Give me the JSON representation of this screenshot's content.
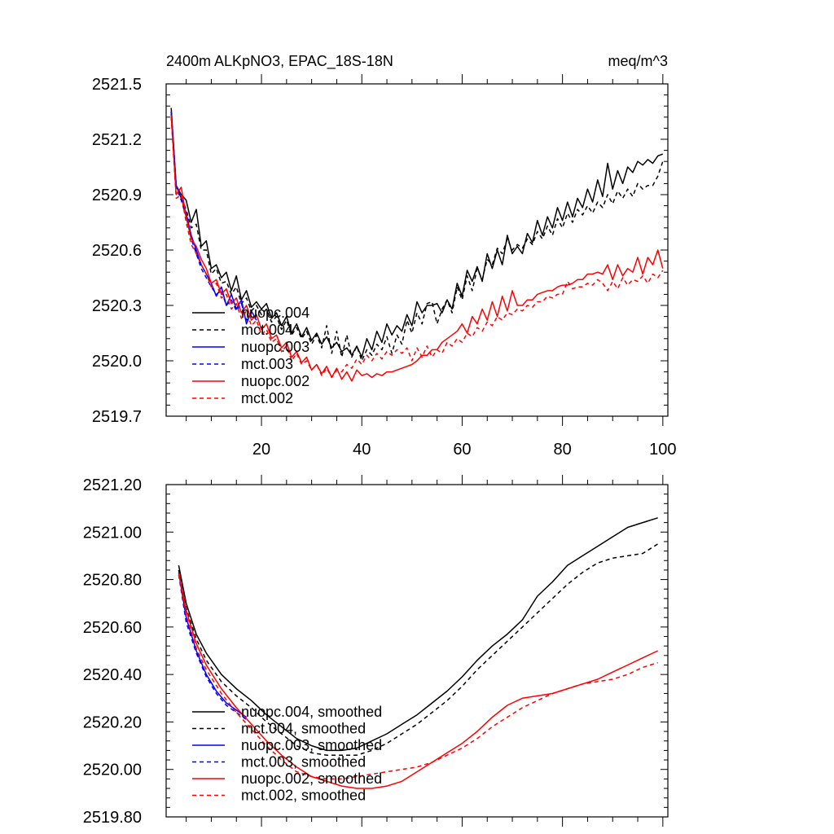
{
  "chart_data": [
    {
      "type": "line",
      "title": "2400m ALKpNO3, EPAC_18S-18N",
      "units": "meq/m^3",
      "xlabel": "",
      "ylabel": "",
      "xlim": [
        1,
        101
      ],
      "ylim": [
        2519.7,
        2521.5
      ],
      "xticks": [
        20,
        40,
        60,
        80,
        100
      ],
      "yticks": [
        2519.7,
        2520.0,
        2520.3,
        2520.6,
        2520.9,
        2521.2,
        2521.5
      ],
      "ytick_labels": [
        "2519.7",
        "2520.0",
        "2520.3",
        "2520.6",
        "2520.9",
        "2521.2",
        "2521.5"
      ],
      "series": [
        {
          "name": "nuopc.004",
          "color": "#000000",
          "dash": "solid",
          "x_start": 2,
          "values": [
            2521.37,
            2520.95,
            2520.9,
            2520.87,
            2520.75,
            2520.82,
            2520.62,
            2520.65,
            2520.5,
            2520.52,
            2520.45,
            2520.48,
            2520.38,
            2520.46,
            2520.33,
            2520.38,
            2520.29,
            2520.32,
            2520.28,
            2520.31,
            2520.23,
            2520.26,
            2520.19,
            2520.24,
            2520.15,
            2520.2,
            2520.13,
            2520.18,
            2520.11,
            2520.15,
            2520.09,
            2520.13,
            2520.07,
            2520.1,
            2520.05,
            2520.07,
            2520.03,
            2520.08,
            2520.02,
            2520.12,
            2520.06,
            2520.16,
            2520.1,
            2520.2,
            2520.14,
            2520.19,
            2520.16,
            2520.25,
            2520.19,
            2520.32,
            2520.26,
            2520.3,
            2520.3,
            2520.31,
            2520.26,
            2520.33,
            2520.28,
            2520.42,
            2520.35,
            2520.49,
            2520.43,
            2520.51,
            2520.43,
            2520.58,
            2520.5,
            2520.6,
            2520.52,
            2520.68,
            2520.58,
            2520.62,
            2520.58,
            2520.69,
            2520.64,
            2520.76,
            2520.68,
            2520.78,
            2520.72,
            2520.83,
            2520.76,
            2520.86,
            2520.78,
            2520.88,
            2520.83,
            2520.93,
            2520.86,
            2520.98,
            2520.89,
            2521.07,
            2520.93,
            2521.03,
            2520.96,
            2521.05,
            2521.02,
            2521.08,
            2521.06,
            2521.09,
            2521.07,
            2521.11,
            2521.12
          ]
        },
        {
          "name": "mct.004",
          "color": "#000000",
          "dash": "dashed",
          "x_start": 2,
          "values": [
            2521.35,
            2520.93,
            2520.88,
            2520.82,
            2520.72,
            2520.74,
            2520.6,
            2520.6,
            2520.47,
            2520.5,
            2520.42,
            2520.43,
            2520.36,
            2520.4,
            2520.31,
            2520.34,
            2520.27,
            2520.3,
            2520.25,
            2520.28,
            2520.21,
            2520.24,
            2520.17,
            2520.22,
            2520.14,
            2520.18,
            2520.12,
            2520.16,
            2520.09,
            2520.14,
            2520.07,
            2520.19,
            2520.04,
            2520.16,
            2520.02,
            2520.14,
            2520.02,
            2520.08,
            2520.0,
            2520.06,
            2520.03,
            2520.09,
            2520.06,
            2520.13,
            2520.04,
            2520.14,
            2520.09,
            2520.22,
            2520.15,
            2520.26,
            2520.2,
            2520.31,
            2520.32,
            2520.2,
            2520.28,
            2520.33,
            2520.26,
            2520.4,
            2520.33,
            2520.46,
            2520.38,
            2520.5,
            2520.44,
            2520.55,
            2520.52,
            2520.61,
            2520.58,
            2520.66,
            2520.6,
            2520.63,
            2520.61,
            2520.66,
            2520.63,
            2520.7,
            2520.66,
            2520.73,
            2520.68,
            2520.77,
            2520.72,
            2520.8,
            2520.75,
            2520.82,
            2520.79,
            2520.84,
            2520.8,
            2520.86,
            2520.83,
            2520.9,
            2520.85,
            2520.92,
            2520.88,
            2520.93,
            2520.89,
            2520.96,
            2520.93,
            2520.95,
            2520.95,
            2521.0,
            2521.08
          ]
        },
        {
          "name": "nuopc.003",
          "color": "#0000ff",
          "dash": "solid",
          "x_start": 2,
          "values": [
            2521.35,
            2520.95,
            2520.88,
            2520.8,
            2520.68,
            2520.6,
            2520.52,
            2520.47,
            2520.42,
            2520.35,
            2520.4,
            2520.3,
            2520.36,
            2520.28,
            2520.33,
            2520.2,
            2520.27,
            2520.22
          ]
        },
        {
          "name": "mct.003",
          "color": "#0000ff",
          "dash": "dashed",
          "x_start": 2,
          "values": [
            2521.35,
            2520.94,
            2520.87,
            2520.78,
            2520.66,
            2520.58,
            2520.5,
            2520.45,
            2520.4,
            2520.36,
            2520.38,
            2520.3,
            2520.33,
            2520.27,
            2520.31,
            2520.22,
            2520.26,
            2520.22
          ]
        },
        {
          "name": "nuopc.002",
          "color": "#ff0000",
          "dash": "solid",
          "x_start": 2,
          "values": [
            2521.33,
            2520.9,
            2520.94,
            2520.78,
            2520.66,
            2520.62,
            2520.55,
            2520.5,
            2520.42,
            2520.44,
            2520.36,
            2520.39,
            2520.31,
            2520.34,
            2520.26,
            2520.3,
            2520.22,
            2520.25,
            2520.17,
            2520.2,
            2520.12,
            2520.14,
            2520.07,
            2520.1,
            2520.02,
            2520.05,
            2519.99,
            2520.02,
            2519.95,
            2519.98,
            2519.93,
            2519.97,
            2519.91,
            2519.96,
            2519.9,
            2519.94,
            2519.89,
            2519.95,
            2519.92,
            2519.93,
            2519.91,
            2519.93,
            2519.92,
            2519.94,
            2519.94,
            2519.95,
            2519.96,
            2519.97,
            2519.98,
            2520.0,
            2520.03,
            2520.03,
            2520.06,
            2520.06,
            2520.1,
            2520.12,
            2520.14,
            2520.16,
            2520.2,
            2520.15,
            2520.24,
            2520.2,
            2520.28,
            2520.22,
            2520.32,
            2520.24,
            2520.35,
            2520.27,
            2520.38,
            2520.3,
            2520.3,
            2520.33,
            2520.33,
            2520.36,
            2520.37,
            2520.38,
            2520.38,
            2520.4,
            2520.41,
            2520.41,
            2520.42,
            2520.44,
            2520.44,
            2520.47,
            2520.47,
            2520.48,
            2520.47,
            2520.52,
            2520.44,
            2520.52,
            2520.46,
            2520.5,
            2520.48,
            2520.56,
            2520.47,
            2520.56,
            2520.52,
            2520.6,
            2520.5
          ]
        },
        {
          "name": "mct.002",
          "color": "#ff0000",
          "dash": "dashed",
          "x_start": 2,
          "values": [
            2521.32,
            2520.88,
            2520.9,
            2520.75,
            2520.63,
            2520.58,
            2520.52,
            2520.47,
            2520.4,
            2520.42,
            2520.34,
            2520.36,
            2520.28,
            2520.31,
            2520.23,
            2520.27,
            2520.19,
            2520.22,
            2520.14,
            2520.17,
            2520.1,
            2520.12,
            2520.05,
            2520.08,
            2520.0,
            2520.04,
            2519.98,
            2520.0,
            2519.95,
            2519.98,
            2519.92,
            2519.96,
            2519.91,
            2519.95,
            2519.94,
            2519.98,
            2519.96,
            2520.01,
            2519.98,
            2520.03,
            2520.0,
            2520.04,
            2520.01,
            2520.05,
            2520.03,
            2520.06,
            2520.04,
            2520.07,
            2520.0,
            2520.07,
            2520.02,
            2520.08,
            2520.02,
            2520.06,
            2520.04,
            2520.1,
            2520.08,
            2520.12,
            2520.1,
            2520.15,
            2520.13,
            2520.18,
            2520.16,
            2520.21,
            2520.19,
            2520.24,
            2520.22,
            2520.26,
            2520.25,
            2520.28,
            2520.27,
            2520.3,
            2520.29,
            2520.32,
            2520.32,
            2520.35,
            2520.34,
            2520.36,
            2520.36,
            2520.43,
            2520.39,
            2520.4,
            2520.4,
            2520.42,
            2520.41,
            2520.44,
            2520.42,
            2520.38,
            2520.43,
            2520.39,
            2520.45,
            2520.41,
            2520.44,
            2520.43,
            2520.46,
            2520.42,
            2520.47,
            2520.45,
            2520.49
          ]
        }
      ]
    },
    {
      "type": "line",
      "title": "",
      "xlabel": "",
      "ylabel": "",
      "xlim": [
        1,
        101
      ],
      "ylim": [
        2519.8,
        2521.2
      ],
      "xticks": [
        20,
        40,
        60,
        80,
        100
      ],
      "yticks": [
        2519.8,
        2520.0,
        2520.2,
        2520.4,
        2520.6,
        2520.8,
        2521.0,
        2521.2
      ],
      "ytick_labels": [
        "2519.80",
        "2520.00",
        "2520.20",
        "2520.40",
        "2520.60",
        "2520.80",
        "2521.00",
        "2521.20"
      ],
      "series": [
        {
          "name": "nuopc.004, smoothed",
          "color": "#000000",
          "dash": "solid",
          "x": [
            3.5,
            5,
            7,
            9,
            12,
            15,
            18,
            21,
            24,
            27,
            30,
            33,
            36,
            39,
            42,
            45,
            48,
            51,
            54,
            57,
            60,
            63,
            66,
            69,
            72,
            75,
            78,
            81,
            84,
            87,
            90,
            93,
            96,
            99
          ],
          "values": [
            2520.86,
            2520.7,
            2520.57,
            2520.49,
            2520.4,
            2520.34,
            2520.29,
            2520.23,
            2520.18,
            2520.13,
            2520.1,
            2520.08,
            2520.08,
            2520.09,
            2520.12,
            2520.15,
            2520.19,
            2520.23,
            2520.28,
            2520.33,
            2520.39,
            2520.46,
            2520.52,
            2520.57,
            2520.63,
            2520.73,
            2520.79,
            2520.86,
            2520.9,
            2520.94,
            2520.98,
            2521.02,
            2521.04,
            2521.06
          ]
        },
        {
          "name": "mct.004, smoothed",
          "color": "#000000",
          "dash": "dashed",
          "x": [
            3.5,
            5,
            7,
            9,
            12,
            15,
            18,
            21,
            24,
            27,
            30,
            33,
            36,
            39,
            42,
            45,
            48,
            51,
            54,
            57,
            60,
            63,
            66,
            69,
            72,
            75,
            78,
            81,
            84,
            87,
            90,
            93,
            96,
            99
          ],
          "values": [
            2520.84,
            2520.68,
            2520.55,
            2520.46,
            2520.37,
            2520.31,
            2520.26,
            2520.2,
            2520.15,
            2520.1,
            2520.07,
            2520.06,
            2520.06,
            2520.06,
            2520.08,
            2520.11,
            2520.15,
            2520.19,
            2520.24,
            2520.29,
            2520.35,
            2520.42,
            2520.48,
            2520.54,
            2520.6,
            2520.66,
            2520.72,
            2520.78,
            2520.83,
            2520.87,
            2520.89,
            2520.9,
            2520.91,
            2520.95
          ]
        },
        {
          "name": "nuopc.003, smoothed",
          "color": "#0000ff",
          "dash": "solid",
          "x": [
            3.5,
            5,
            7,
            9,
            11,
            13,
            15,
            17
          ],
          "values": [
            2520.83,
            2520.64,
            2520.5,
            2520.4,
            2520.33,
            2520.28,
            2520.25,
            2520.22
          ]
        },
        {
          "name": "mct.003, smoothed",
          "color": "#0000ff",
          "dash": "dashed",
          "x": [
            3.5,
            5,
            7,
            9,
            11,
            13,
            15,
            17
          ],
          "values": [
            2520.82,
            2520.62,
            2520.49,
            2520.39,
            2520.32,
            2520.27,
            2520.24,
            2520.21
          ]
        },
        {
          "name": "nuopc.002, smoothed",
          "color": "#ff0000",
          "dash": "solid",
          "x": [
            3.5,
            5,
            7,
            9,
            12,
            15,
            18,
            21,
            24,
            27,
            30,
            33,
            36,
            39,
            42,
            45,
            48,
            51,
            54,
            57,
            60,
            63,
            66,
            69,
            72,
            75,
            78,
            81,
            84,
            87,
            90,
            93,
            96,
            99
          ],
          "values": [
            2520.83,
            2520.67,
            2520.53,
            2520.44,
            2520.34,
            2520.26,
            2520.19,
            2520.12,
            2520.06,
            2520.01,
            2519.97,
            2519.95,
            2519.93,
            2519.92,
            2519.92,
            2519.93,
            2519.95,
            2519.99,
            2520.03,
            2520.07,
            2520.11,
            2520.16,
            2520.22,
            2520.27,
            2520.3,
            2520.31,
            2520.32,
            2520.34,
            2520.36,
            2520.38,
            2520.41,
            2520.44,
            2520.47,
            2520.5
          ]
        },
        {
          "name": "mct.002, smoothed",
          "color": "#ff0000",
          "dash": "dashed",
          "x": [
            3.5,
            5,
            7,
            9,
            12,
            15,
            18,
            21,
            24,
            27,
            30,
            33,
            36,
            39,
            42,
            45,
            48,
            51,
            54,
            57,
            60,
            63,
            66,
            69,
            72,
            75,
            78,
            81,
            84,
            87,
            90,
            93,
            96,
            99
          ],
          "values": [
            2520.82,
            2520.65,
            2520.51,
            2520.42,
            2520.32,
            2520.24,
            2520.17,
            2520.1,
            2520.04,
            2519.99,
            2519.97,
            2519.96,
            2519.96,
            2519.97,
            2519.98,
            2519.99,
            2520.0,
            2520.01,
            2520.03,
            2520.06,
            2520.09,
            2520.13,
            2520.18,
            2520.22,
            2520.26,
            2520.29,
            2520.32,
            2520.34,
            2520.36,
            2520.37,
            2520.38,
            2520.4,
            2520.43,
            2520.45
          ]
        }
      ]
    }
  ]
}
